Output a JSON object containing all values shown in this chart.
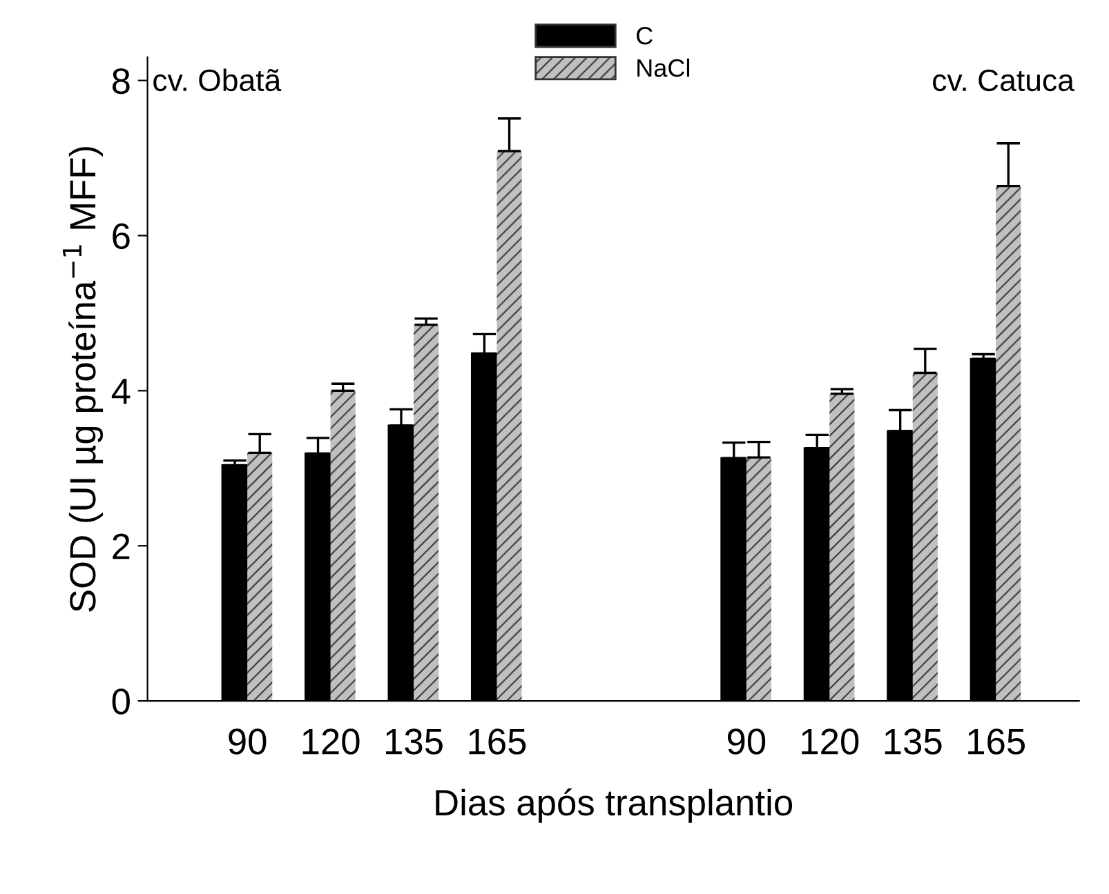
{
  "chart_data": {
    "type": "bar",
    "xlabel": "Dias após transplantio",
    "ylabel": "SOD (UI µg proteína$^{−1}$ MFF)",
    "categories": [
      "90",
      "120",
      "135",
      "165",
      null,
      null,
      "90",
      "120",
      "135",
      "165"
    ],
    "series": [
      {
        "name": "C",
        "color": "#000000",
        "values": [
          3.04,
          3.19,
          3.55,
          4.48,
          null,
          null,
          3.13,
          3.26,
          3.48,
          4.41
        ],
        "errors": [
          [
            3.04,
            3.1
          ],
          [
            3.19,
            3.39
          ],
          [
            3.55,
            3.76
          ],
          [
            4.48,
            4.73
          ],
          null,
          null,
          [
            3.13,
            3.33
          ],
          [
            3.26,
            3.43
          ],
          [
            3.48,
            3.75
          ],
          [
            4.41,
            4.47
          ]
        ]
      },
      {
        "name": "NaCl",
        "color": "#c0c0c0",
        "values": [
          3.2,
          4.0,
          4.85,
          7.09,
          null,
          null,
          3.14,
          3.96,
          4.23,
          6.64
        ],
        "errors": [
          [
            3.2,
            3.44
          ],
          [
            4.0,
            4.09
          ],
          [
            4.85,
            4.93
          ],
          [
            7.09,
            7.51
          ],
          null,
          null,
          [
            3.14,
            3.34
          ],
          [
            3.96,
            4.02
          ],
          [
            4.23,
            4.54
          ],
          [
            6.64,
            7.19
          ]
        ]
      }
    ],
    "ylim": [
      0,
      8.3
    ],
    "yticks": [
      0,
      2,
      4,
      6,
      8
    ],
    "grid": false,
    "legend": "top",
    "annotations": [
      "cv. Obatã",
      "cv. Catuca"
    ]
  }
}
